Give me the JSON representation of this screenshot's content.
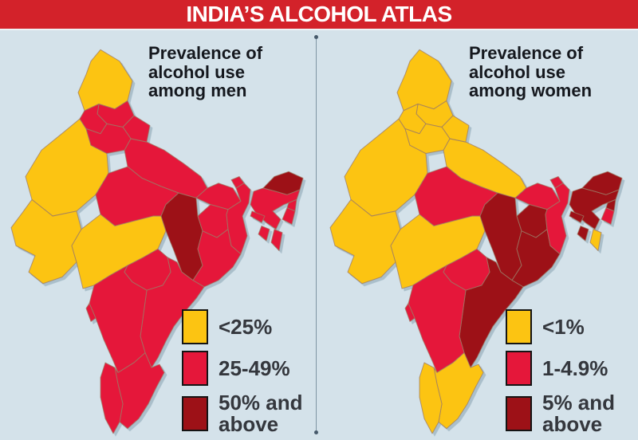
{
  "title": "INDIA’S ALCOHOL ATLAS",
  "colors": {
    "background": "#d4e2ea",
    "title_bar": "#d3222a",
    "title_text": "#ffffff",
    "heading_text": "#15181e",
    "legend_text": "#34373d",
    "divider": "#7e94a3",
    "divider_dot": "#46596a",
    "state_border": "#9c7b66",
    "map_shadow": "#aabfcb",
    "levels": {
      "low": "#fcc412",
      "mid": "#e5173a",
      "high": "#9d1117"
    }
  },
  "maps": [
    {
      "id": "men",
      "heading_lines": [
        "Prevalence of",
        "alcohol use",
        "among men"
      ],
      "legend": [
        {
          "label": "<25%",
          "level": "low"
        },
        {
          "label": "25-49%",
          "level": "mid"
        },
        {
          "label": "50% and above",
          "level": "high"
        }
      ],
      "states": {
        "rajasthan": "low",
        "uttar-pradesh": "mid",
        "madhya-pradesh": "mid",
        "gujarat": "low",
        "maharashtra": "low",
        "chhattisgarh": "high",
        "odisha": "mid",
        "andhra-pradesh": "mid",
        "karnataka": "mid",
        "tamil-nadu": "mid",
        "kerala": "mid",
        "telangana": "mid",
        "jammu-kashmir": "low",
        "himachal-pradesh": "mid",
        "punjab": "mid",
        "uttarakhand": "mid",
        "haryana": "mid",
        "bihar": "mid",
        "jharkhand": "mid",
        "west-bengal": "mid",
        "sikkim": "mid",
        "assam": "mid",
        "arunachal-pradesh": "high",
        "meghalaya": "mid",
        "nagaland": "mid",
        "manipur": "mid",
        "mizoram": "mid",
        "tripura": "mid",
        "goa": "mid"
      }
    },
    {
      "id": "women",
      "heading_lines": [
        "Prevalence of",
        "alcohol use",
        "among women"
      ],
      "legend": [
        {
          "label": "<1%",
          "level": "low"
        },
        {
          "label": "1-4.9%",
          "level": "mid"
        },
        {
          "label": "5% and above",
          "level": "high"
        }
      ],
      "states": {
        "rajasthan": "low",
        "uttar-pradesh": "low",
        "madhya-pradesh": "mid",
        "gujarat": "low",
        "maharashtra": "low",
        "chhattisgarh": "high",
        "odisha": "high",
        "andhra-pradesh": "high",
        "karnataka": "mid",
        "tamil-nadu": "low",
        "kerala": "low",
        "telangana": "mid",
        "jammu-kashmir": "low",
        "himachal-pradesh": "low",
        "punjab": "low",
        "uttarakhand": "low",
        "haryana": "low",
        "bihar": "mid",
        "jharkhand": "high",
        "west-bengal": "mid",
        "sikkim": "mid",
        "assam": "high",
        "arunachal-pradesh": "high",
        "meghalaya": "high",
        "nagaland": "high",
        "manipur": "mid",
        "mizoram": "low",
        "tripura": "high",
        "goa": "mid"
      }
    }
  ]
}
